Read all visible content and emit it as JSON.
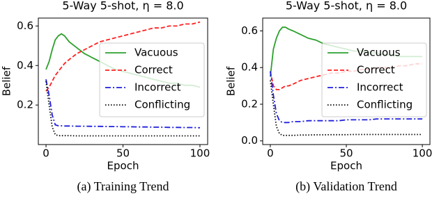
{
  "chart_data": [
    {
      "type": "line",
      "title": "5-Way 5-shot, η = 8.0",
      "xlabel": "Epoch",
      "ylabel": "Belief",
      "caption": "(a) Training Trend",
      "x": [
        0,
        2,
        4,
        6,
        8,
        10,
        12,
        15,
        20,
        25,
        30,
        35,
        40,
        45,
        50,
        55,
        60,
        65,
        70,
        75,
        80,
        85,
        90,
        95,
        100
      ],
      "xlim": [
        -5,
        105
      ],
      "xticks": [
        0,
        50,
        100
      ],
      "ylim": [
        0.0,
        0.64
      ],
      "yticks": [
        0.2,
        0.4,
        0.6
      ],
      "legend": "upper right",
      "series": [
        {
          "name": "Vacuous",
          "color": "#2ca02c",
          "linestyle": "solid",
          "values": [
            0.38,
            0.42,
            0.48,
            0.53,
            0.55,
            0.56,
            0.55,
            0.52,
            0.49,
            0.46,
            0.44,
            0.42,
            0.4,
            0.38,
            0.37,
            0.36,
            0.35,
            0.34,
            0.33,
            0.32,
            0.31,
            0.31,
            0.3,
            0.3,
            0.29
          ]
        },
        {
          "name": "Correct",
          "color": "#ff2020",
          "linestyle": "dashed",
          "values": [
            0.27,
            0.29,
            0.32,
            0.35,
            0.37,
            0.39,
            0.41,
            0.43,
            0.46,
            0.48,
            0.5,
            0.52,
            0.53,
            0.54,
            0.55,
            0.56,
            0.57,
            0.58,
            0.59,
            0.59,
            0.6,
            0.6,
            0.61,
            0.61,
            0.62
          ]
        },
        {
          "name": "Incorrect",
          "color": "#1f1fdd",
          "linestyle": "dashdot",
          "values": [
            0.33,
            0.25,
            0.15,
            0.1,
            0.095,
            0.095,
            0.094,
            0.094,
            0.093,
            0.093,
            0.092,
            0.092,
            0.091,
            0.091,
            0.09,
            0.09,
            0.089,
            0.089,
            0.088,
            0.088,
            0.087,
            0.087,
            0.086,
            0.086,
            0.085
          ]
        },
        {
          "name": "Conflicting",
          "color": "#000000",
          "linestyle": "dotted",
          "values": [
            0.32,
            0.2,
            0.09,
            0.05,
            0.045,
            0.045,
            0.045,
            0.045,
            0.044,
            0.044,
            0.044,
            0.044,
            0.044,
            0.044,
            0.044,
            0.044,
            0.044,
            0.044,
            0.044,
            0.044,
            0.044,
            0.044,
            0.044,
            0.044,
            0.044
          ]
        }
      ]
    },
    {
      "type": "line",
      "title": "5-Way 5-shot, η = 8.0",
      "xlabel": "Epoch",
      "ylabel": "Belief",
      "caption": "(b) Validation Trend",
      "x": [
        0,
        2,
        4,
        6,
        8,
        10,
        12,
        15,
        20,
        25,
        30,
        35,
        40,
        45,
        50,
        55,
        60,
        65,
        70,
        75,
        80,
        85,
        90,
        95,
        100
      ],
      "xlim": [
        -5,
        105
      ],
      "xticks": [
        0,
        50,
        100
      ],
      "ylim": [
        -0.02,
        0.67
      ],
      "yticks": [
        {
          "value": 0,
          "label": "0.0"
        },
        0.2,
        0.4,
        0.6
      ],
      "legend": "upper right",
      "series": [
        {
          "name": "Vacuous",
          "color": "#2ca02c",
          "linestyle": "solid",
          "values": [
            0.35,
            0.5,
            0.56,
            0.6,
            0.62,
            0.62,
            0.61,
            0.6,
            0.58,
            0.56,
            0.55,
            0.53,
            0.52,
            0.51,
            0.5,
            0.49,
            0.49,
            0.48,
            0.48,
            0.47,
            0.47,
            0.46,
            0.46,
            0.46,
            0.46
          ]
        },
        {
          "name": "Correct",
          "color": "#ff2020",
          "linestyle": "dashed",
          "values": [
            0.38,
            0.3,
            0.28,
            0.28,
            0.29,
            0.3,
            0.3,
            0.31,
            0.33,
            0.34,
            0.35,
            0.36,
            0.37,
            0.37,
            0.38,
            0.38,
            0.39,
            0.39,
            0.4,
            0.4,
            0.4,
            0.41,
            0.41,
            0.42,
            0.42
          ]
        },
        {
          "name": "Incorrect",
          "color": "#1f1fdd",
          "linestyle": "dashdot",
          "values": [
            0.38,
            0.25,
            0.15,
            0.11,
            0.1,
            0.1,
            0.1,
            0.105,
            0.105,
            0.11,
            0.11,
            0.11,
            0.11,
            0.11,
            0.115,
            0.115,
            0.115,
            0.115,
            0.12,
            0.12,
            0.12,
            0.12,
            0.12,
            0.12,
            0.12
          ]
        },
        {
          "name": "Conflicting",
          "color": "#000000",
          "linestyle": "dotted",
          "values": [
            0.33,
            0.2,
            0.08,
            0.04,
            0.03,
            0.03,
            0.03,
            0.03,
            0.032,
            0.032,
            0.033,
            0.033,
            0.034,
            0.034,
            0.034,
            0.035,
            0.035,
            0.035,
            0.035,
            0.035,
            0.035,
            0.035,
            0.035,
            0.035,
            0.035
          ]
        }
      ]
    }
  ]
}
